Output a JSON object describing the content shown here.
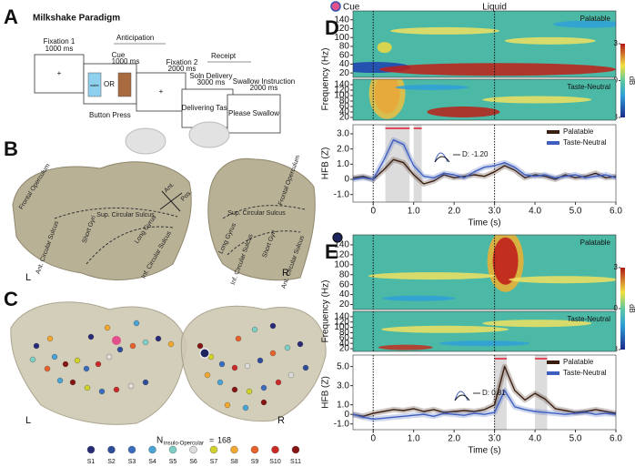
{
  "panel_labels": {
    "a": "A",
    "b": "B",
    "c": "C",
    "d": "D",
    "e": "E"
  },
  "paradigm": {
    "title": "Milkshake Paradigm",
    "anticipation": "Anticipation",
    "receipt": "Receipt",
    "steps": [
      {
        "label": "Fixation 1",
        "duration": "1000 ms"
      },
      {
        "label": "Cue",
        "duration": "1000 ms"
      },
      {
        "label": "Fixation 2",
        "duration": "2000 ms"
      },
      {
        "label": "Soln Delivery",
        "duration": "3000 ms"
      },
      {
        "label": "Swallow Instruction",
        "duration": "2000 ms"
      }
    ],
    "screens": {
      "fixation": "+",
      "water": "water",
      "or": "OR",
      "delivering": "Delivering Taste",
      "swallow": "Please Swallow"
    },
    "button_press": "Button Press"
  },
  "anatomy": {
    "left_labels": [
      "Frontal Operculum",
      "Sup. Circular Sulcus",
      "Short Gyri",
      "Ant. Circular Sulcus",
      "Long Gyrus",
      "Inf. Circular Sulcus",
      "Ant.",
      "Pos."
    ],
    "right_labels": [
      "Frontal Operculum",
      "Sup. Circular Sulcus",
      "Long Gyrus",
      "Inf. Circular Sulcus",
      "Short Gyri",
      "Ant. Circular Sulcus"
    ],
    "hemispheres": [
      "L",
      "R"
    ]
  },
  "electrodes": {
    "n_symbol": "N",
    "n_subscript": "insulo-Opercular",
    "n_equals": "=",
    "n_count": 168,
    "hemispheres": [
      "L",
      "R"
    ],
    "subjects": [
      {
        "name": "S1",
        "color": "#262a78"
      },
      {
        "name": "S2",
        "color": "#2d4c9c"
      },
      {
        "name": "S3",
        "color": "#3a6cbd"
      },
      {
        "name": "S4",
        "color": "#49a4d6"
      },
      {
        "name": "S5",
        "color": "#7fcfc6"
      },
      {
        "name": "S6",
        "color": "#dcdcdc"
      },
      {
        "name": "S7",
        "color": "#d2d22c"
      },
      {
        "name": "S8",
        "color": "#f2a830"
      },
      {
        "name": "S9",
        "color": "#e8602a"
      },
      {
        "name": "S10",
        "color": "#cc2a26"
      },
      {
        "name": "S11",
        "color": "#861414"
      }
    ]
  },
  "chart_data": [
    {
      "type": "heatmap",
      "label": "Palatable",
      "ylabel": "Frequency (Hz)",
      "ylim": [
        10,
        160
      ],
      "yticks": [
        20,
        40,
        60,
        80,
        100,
        120,
        140
      ],
      "xlim": [
        -0.5,
        6.0
      ],
      "events": [
        {
          "label": "Cue",
          "value": 0
        },
        {
          "label": "Liquid",
          "value": 3
        }
      ],
      "colorbar_label": "dB",
      "colorbar_lim": [
        -3,
        3
      ],
      "colorbar_ticks": [
        3,
        0,
        -3
      ]
    },
    {
      "type": "heatmap",
      "label": "Taste-Neutral",
      "ylim": [
        10,
        160
      ],
      "yticks": [
        20,
        40,
        60,
        80,
        100,
        120,
        140
      ],
      "xlim": [
        -0.5,
        6.0
      ],
      "events": [
        {
          "value": 0
        },
        {
          "value": 3
        }
      ]
    },
    {
      "type": "line",
      "xlabel": "Time (s)",
      "ylabel": "HFB (Z)",
      "xlim": [
        -0.5,
        6.0
      ],
      "ylim": [
        -1.5,
        3.6
      ],
      "xticks": [
        0,
        {
          "value": 1,
          "label": "1.0"
        },
        {
          "value": 2,
          "label": "2.0"
        },
        {
          "value": 3,
          "label": "3.0"
        },
        {
          "value": 4,
          "label": "4.0"
        },
        {
          "value": 5,
          "label": "5.0"
        },
        {
          "value": 6,
          "label": "6.0"
        }
      ],
      "yticks": [
        {
          "value": -1,
          "label": "-1.0"
        },
        0,
        {
          "value": 1,
          "label": "1.0"
        },
        {
          "value": 2,
          "label": "2.0"
        },
        {
          "value": 3,
          "label": "3.0"
        }
      ],
      "vlines": [
        0,
        3
      ],
      "sig_windows": [
        [
          0.3,
          0.9
        ],
        [
          1.0,
          1.2
        ]
      ],
      "inset_label": "D: -1.20",
      "legend": "upper right",
      "x": [
        -0.5,
        -0.25,
        0,
        0.25,
        0.5,
        0.75,
        1.0,
        1.25,
        1.5,
        1.75,
        2.0,
        2.25,
        2.5,
        2.75,
        3.0,
        3.25,
        3.5,
        3.75,
        4.0,
        4.25,
        4.5,
        4.75,
        5.0,
        5.25,
        5.5,
        5.75,
        6.0
      ],
      "series": [
        {
          "name": "Palatable",
          "color": "#3a1e10",
          "values": [
            0.1,
            0.2,
            0.0,
            0.6,
            1.3,
            1.1,
            0.3,
            -0.3,
            -0.1,
            0.3,
            0.1,
            0.2,
            0.3,
            0.2,
            0.5,
            0.9,
            0.6,
            0.1,
            0.3,
            0.2,
            0.0,
            0.3,
            0.1,
            0.2,
            0.4,
            0.1,
            0.2
          ]
        },
        {
          "name": "Taste-Neutral",
          "color": "#3f5fbf",
          "values": [
            0.0,
            0.1,
            0.0,
            1.2,
            2.6,
            2.3,
            0.9,
            0.2,
            0.1,
            0.4,
            0.3,
            0.1,
            0.5,
            0.8,
            0.9,
            1.1,
            0.8,
            0.3,
            0.2,
            0.3,
            0.1,
            0.2,
            0.3,
            0.1,
            0.2,
            0.3,
            0.1
          ]
        }
      ]
    },
    {
      "type": "heatmap",
      "label": "Palatable",
      "ylabel": "Frequency (Hz)",
      "ylim": [
        10,
        160
      ],
      "yticks": [
        20,
        40,
        60,
        80,
        100,
        120,
        140
      ],
      "xlim": [
        -0.5,
        6.0
      ],
      "events": [
        {
          "value": 0
        },
        {
          "value": 3
        }
      ],
      "colorbar_label": "dB",
      "colorbar_lim": [
        -3,
        3
      ],
      "colorbar_ticks": [
        3,
        0,
        -3
      ]
    },
    {
      "type": "heatmap",
      "label": "Taste-Neutral",
      "ylim": [
        10,
        160
      ],
      "yticks": [
        20,
        40,
        60,
        80,
        100,
        120,
        140
      ],
      "xlim": [
        -0.5,
        6.0
      ],
      "events": [
        {
          "value": 0
        },
        {
          "value": 3
        }
      ]
    },
    {
      "type": "line",
      "xlabel": "Time (s)",
      "ylabel": "HFB (Z)",
      "xlim": [
        -0.5,
        6.0
      ],
      "ylim": [
        -1.6,
        6.2
      ],
      "xticks": [
        0,
        {
          "value": 1,
          "label": "1.0"
        },
        {
          "value": 2,
          "label": "2.0"
        },
        {
          "value": 3,
          "label": "3.0"
        },
        {
          "value": 4,
          "label": "4.0"
        },
        {
          "value": 5,
          "label": "5.0"
        },
        {
          "value": 6,
          "label": "6.0"
        }
      ],
      "yticks": [
        {
          "value": -1,
          "label": "-1.0"
        },
        0,
        {
          "value": 1,
          "label": "1.0"
        },
        {
          "value": 3,
          "label": "3.0"
        },
        {
          "value": 5,
          "label": "5.0"
        }
      ],
      "vlines": [
        0,
        3
      ],
      "sig_windows": [
        [
          3.0,
          3.3
        ],
        [
          4.0,
          4.3
        ]
      ],
      "inset_label": "D: 0.81",
      "legend": "upper right",
      "x": [
        -0.5,
        -0.25,
        0,
        0.25,
        0.5,
        0.75,
        1.0,
        1.25,
        1.5,
        1.75,
        2.0,
        2.25,
        2.5,
        2.75,
        3.0,
        3.25,
        3.5,
        3.75,
        4.0,
        4.25,
        4.5,
        4.75,
        5.0,
        5.25,
        5.5,
        5.75,
        6.0
      ],
      "series": [
        {
          "name": "Palatable",
          "color": "#3a1e10",
          "values": [
            0.0,
            -0.2,
            0.1,
            0.3,
            0.5,
            0.4,
            0.6,
            0.3,
            0.5,
            0.2,
            0.3,
            0.4,
            0.3,
            0.5,
            1.0,
            5.0,
            2.5,
            1.5,
            2.2,
            1.6,
            0.6,
            0.4,
            0.2,
            0.3,
            0.5,
            0.3,
            0.1
          ]
        },
        {
          "name": "Taste-Neutral",
          "color": "#3f5fbf",
          "values": [
            0.0,
            -0.3,
            -0.5,
            -0.4,
            -0.3,
            -0.2,
            -0.1,
            0.0,
            -0.2,
            0.1,
            0.0,
            -0.1,
            0.1,
            0.0,
            0.2,
            2.5,
            0.8,
            0.5,
            0.3,
            0.2,
            0.1,
            0.0,
            0.1,
            0.2,
            0.0,
            0.1,
            0.0
          ]
        }
      ]
    }
  ]
}
